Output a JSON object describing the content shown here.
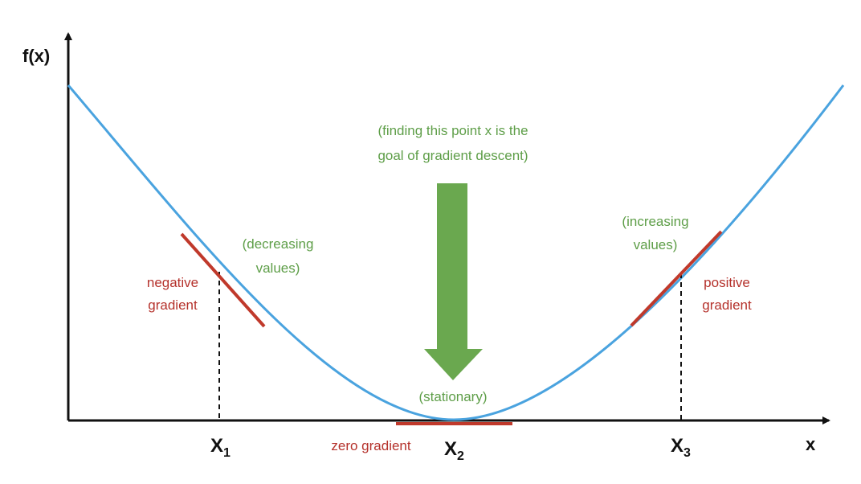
{
  "axes": {
    "y_label": "f(x)",
    "x_label": "x"
  },
  "points": [
    {
      "name": "X",
      "sub": "1"
    },
    {
      "name": "X",
      "sub": "2"
    },
    {
      "name": "X",
      "sub": "3"
    }
  ],
  "annotations": {
    "goal_line1": "(finding this point x is the",
    "goal_line2": "goal of gradient descent)",
    "decreasing_line1": "(decreasing",
    "decreasing_line2": "values)",
    "increasing_line1": "(increasing",
    "increasing_line2": "values)",
    "negative_line1": "negative",
    "negative_line2": "gradient",
    "positive_line1": "positive",
    "positive_line2": "gradient",
    "stationary": "(stationary)",
    "zero_gradient": "zero gradient"
  },
  "colors": {
    "curve": "#4aa3df",
    "tangent": "#c0392b",
    "arrow": "#6aa84f",
    "red_text": "#b5322c",
    "green_text": "#5e9e48",
    "axis": "#111111"
  }
}
